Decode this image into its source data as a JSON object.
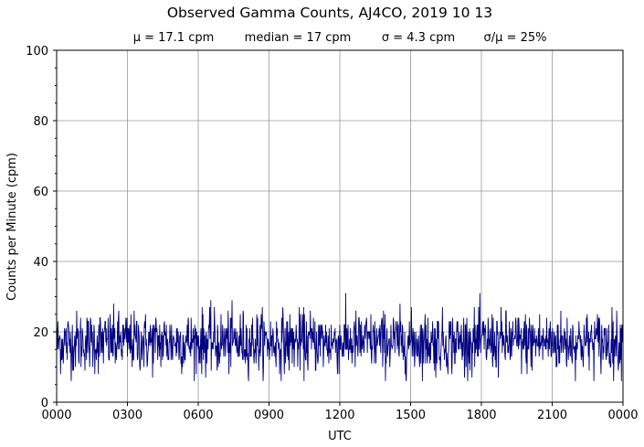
{
  "chart_data": {
    "type": "line",
    "title": "Observed Gamma Counts, AJ4CO, 2019 10 13",
    "subtitle": {
      "mean": "μ = 17.1 cpm",
      "median": "median = 17 cpm",
      "sigma": "σ = 4.3 cpm",
      "ratio": "σ/μ = 25%"
    },
    "xlabel": "UTC",
    "ylabel": "Counts per Minute (cpm)",
    "xlim": [
      0,
      24
    ],
    "ylim": [
      0,
      100
    ],
    "x_ticks": [
      0,
      3,
      6,
      9,
      12,
      15,
      18,
      21,
      24
    ],
    "x_tick_labels": [
      "0000",
      "0300",
      "0600",
      "0900",
      "1200",
      "1500",
      "1800",
      "2100",
      "0000"
    ],
    "y_ticks": [
      0,
      20,
      40,
      60,
      80,
      100
    ],
    "y_tick_labels": [
      "0",
      "20",
      "40",
      "60",
      "80",
      "100"
    ],
    "y_minor_step": 5,
    "grid": true,
    "series": [
      {
        "name": "Counts per minute",
        "color": "#000080",
        "points_per_day": 1440,
        "mean": 17.1,
        "median": 17,
        "std": 4.3,
        "min": 6,
        "max": 34
      }
    ]
  }
}
